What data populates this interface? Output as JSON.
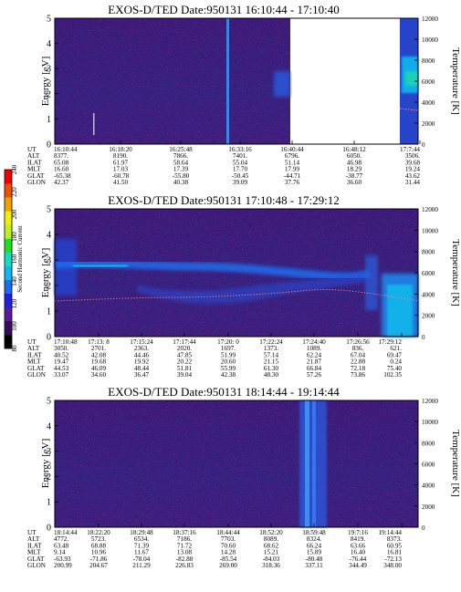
{
  "colorbar": {
    "label": "Second Harmonic Current",
    "ticks": [
      "80",
      "100",
      "120",
      "140",
      "160",
      "180",
      "200",
      "220",
      "240"
    ],
    "colors": [
      "#000000",
      "#3a0a5a",
      "#5a1aa0",
      "#2020e0",
      "#1a6cf0",
      "#10b8f0",
      "#10e0c0",
      "#20e020",
      "#c0f020",
      "#f0f000",
      "#f0a000",
      "#f05000",
      "#f00000"
    ]
  },
  "panels": [
    {
      "title": "EXOS-D/TED   Date:950131   16:10:44 - 17:10:40",
      "ylabel": "Energy [eV]",
      "y2label": "Temperature [K]",
      "yticks": [
        "0",
        "1",
        "2",
        "3",
        "4",
        "5"
      ],
      "y2ticks": [
        "0",
        "2000",
        "4000",
        "6000",
        "8000",
        "10000",
        "12000"
      ],
      "rows": [
        {
          "label": "UT",
          "values": [
            "16:10:44",
            "16:18:20",
            "16:25:48",
            "16:33:16",
            "16:40:44",
            "16:48:12",
            "",
            "17:7:44"
          ]
        },
        {
          "label": "ALT",
          "values": [
            "8377.",
            "8190.",
            "7866.",
            "7401.",
            "6796.",
            "6050.",
            "",
            "3506."
          ]
        },
        {
          "label": "ILAT",
          "values": [
            "65.08",
            "61.97",
            "58.64",
            "55.04",
            "51.14",
            "46.98",
            "",
            "39.68"
          ]
        },
        {
          "label": "MLT",
          "values": [
            "16.60",
            "17.03",
            "17.39",
            "17.70",
            "17.99",
            "18.29",
            "",
            "19.24"
          ]
        },
        {
          "label": "GLAT",
          "values": [
            "-65.38",
            "-60.78",
            "-55.80",
            "-50.45",
            "-44.71",
            "-38.77",
            "",
            "43.62"
          ]
        },
        {
          "label": "GLON",
          "values": [
            "42.37",
            "41.50",
            "40.38",
            "39.09",
            "37.76",
            "36.60",
            "",
            "31.44"
          ]
        }
      ]
    },
    {
      "title": "EXOS-D/TED   Date:950131   17:10:48 - 17:29:12",
      "ylabel": "Energy [eV]",
      "y2label": "Temperature [K]",
      "yticks": [
        "0",
        "1",
        "2",
        "3",
        "4",
        "5"
      ],
      "y2ticks": [
        "0",
        "2000",
        "4000",
        "6000",
        "8000",
        "10000",
        "12000"
      ],
      "rows": [
        {
          "label": "UT",
          "values": [
            "17:10:48",
            "17:13: 8",
            "17:15:24",
            "17:17:44",
            "17:20: 0",
            "17:22:24",
            "17:24:40",
            "17:26:56",
            "17:29:12"
          ]
        },
        {
          "label": "ALT",
          "values": [
            "3050.",
            "2701.",
            "2363.",
            "2020.",
            "1697.",
            "1373.",
            "1089.",
            "836.",
            "621."
          ]
        },
        {
          "label": "ILAT",
          "values": [
            "40.52",
            "42.08",
            "44.46",
            "47.85",
            "51.99",
            "57.14",
            "62.24",
            "67.04",
            "69.47"
          ]
        },
        {
          "label": "MLT",
          "values": [
            "19.47",
            "19.68",
            "19.92",
            "20.22",
            "20.60",
            "21.15",
            "21.87",
            "22.88",
            "0.24"
          ]
        },
        {
          "label": "GLAT",
          "values": [
            "44.53",
            "46.09",
            "48.44",
            "51.81",
            "55.99",
            "61.30",
            "66.84",
            "72.18",
            "75.40"
          ]
        },
        {
          "label": "GLON",
          "values": [
            "33.07",
            "34.60",
            "36.47",
            "39.04",
            "42.38",
            "48.30",
            "57.26",
            "73.86",
            "102.35"
          ]
        }
      ]
    },
    {
      "title": "EXOS-D/TED   Date:950131   18:14:44 - 19:14:44",
      "ylabel": "Energy [eV]",
      "y2label": "Temperature [K]",
      "yticks": [
        "0",
        "1",
        "2",
        "3",
        "4",
        "5"
      ],
      "y2ticks": [
        "0",
        "2000",
        "4000",
        "6000",
        "8000",
        "10000",
        "12000"
      ],
      "rows": [
        {
          "label": "UT",
          "values": [
            "18:14:44",
            "18:22:20",
            "18:29:48",
            "18:37:16",
            "18:44:44",
            "18:52:20",
            "18:59:48",
            "19:7:16",
            "19:14:44"
          ]
        },
        {
          "label": "ALT",
          "values": [
            "4772.",
            "5723.",
            "6534.",
            "7186.",
            "7703.",
            "8089.",
            "8324.",
            "8419.",
            "8373."
          ]
        },
        {
          "label": "ILAT",
          "values": [
            "63.48",
            "68.88",
            "71.39",
            "71.72",
            "70.60",
            "68.62",
            "66.24",
            "63.66",
            "60.95"
          ]
        },
        {
          "label": "MLT",
          "values": [
            "9.14",
            "10.96",
            "11.67",
            "13.08",
            "14.28",
            "15.21",
            "15.89",
            "16.40",
            "16.81"
          ]
        },
        {
          "label": "GLAT",
          "values": [
            "-63.93",
            "-71.86",
            "-78.04",
            "-82.88",
            "-85.54",
            "-84.03",
            "-80.48",
            "-76.44",
            "-72.13"
          ]
        },
        {
          "label": "GLON",
          "values": [
            "200.99",
            "204.67",
            "211.29",
            "226.83",
            "269.00",
            "318.36",
            "337.11",
            "344.49",
            "348.00"
          ]
        }
      ]
    }
  ],
  "chart_data": [
    {
      "type": "heatmap",
      "title": "EXOS-D/TED   Date:950131   16:10:44 - 17:10:40",
      "xlabel": "",
      "ylabel": "Energy [eV]",
      "y2label": "Temperature [K]",
      "ylim": [
        0,
        5
      ],
      "y2lim": [
        0,
        12000
      ],
      "x": [
        "16:10:44",
        "16:18:20",
        "16:25:48",
        "16:33:16",
        "16:40:44",
        "16:48:12",
        "17:7:44"
      ]
    },
    {
      "type": "heatmap",
      "title": "EXOS-D/TED   Date:950131   17:10:48 - 17:29:12",
      "xlabel": "",
      "ylabel": "Energy [eV]",
      "y2label": "Temperature [K]",
      "ylim": [
        0,
        5
      ],
      "y2lim": [
        0,
        12000
      ],
      "x": [
        "17:10:48",
        "17:13: 8",
        "17:15:24",
        "17:17:44",
        "17:20: 0",
        "17:22:24",
        "17:24:40",
        "17:26:56",
        "17:29:12"
      ]
    },
    {
      "type": "heatmap",
      "title": "EXOS-D/TED   Date:950131   18:14:44 - 19:14:44",
      "xlabel": "",
      "ylabel": "Energy [eV]",
      "y2label": "Temperature [K]",
      "ylim": [
        0,
        5
      ],
      "y2lim": [
        0,
        12000
      ],
      "x": [
        "18:14:44",
        "18:22:20",
        "18:29:48",
        "18:37:16",
        "18:44:44",
        "18:52:20",
        "18:59:48",
        "19:7:16",
        "19:14:44"
      ]
    }
  ]
}
